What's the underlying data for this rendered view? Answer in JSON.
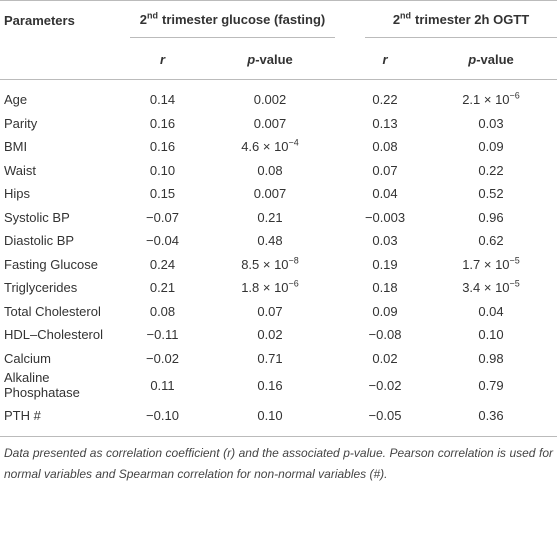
{
  "table": {
    "header": {
      "parameters": "Parameters",
      "groups": [
        {
          "ordinal": "2",
          "suffix": "nd",
          "text": "trimester glucose (fasting)"
        },
        {
          "ordinal": "2",
          "suffix": "nd",
          "text": "trimester 2h OGTT"
        }
      ],
      "subheaders": [
        {
          "r": "r",
          "p": "p",
          "rest": "-value"
        },
        {
          "r": "r",
          "p": "p",
          "rest": "-value"
        }
      ]
    },
    "rows": [
      [
        "Age",
        "0.14",
        "0.002",
        "0.22",
        {
          "base": "2.1 × 10",
          "exp": "−6"
        }
      ],
      [
        "Parity",
        "0.16",
        "0.007",
        "0.13",
        "0.03"
      ],
      [
        "BMI",
        "0.16",
        {
          "base": "4.6 × 10",
          "exp": "−4"
        },
        "0.08",
        "0.09"
      ],
      [
        "Waist",
        "0.10",
        "0.08",
        "0.07",
        "0.22"
      ],
      [
        "Hips",
        "0.15",
        "0.007",
        "0.04",
        "0.52"
      ],
      [
        "Systolic BP",
        "−0.07",
        "0.21",
        "−0.003",
        "0.96"
      ],
      [
        "Diastolic BP",
        "−0.04",
        "0.48",
        "0.03",
        "0.62"
      ],
      [
        "Fasting Glucose",
        "0.24",
        {
          "base": "8.5 × 10",
          "exp": "−8"
        },
        "0.19",
        {
          "base": "1.7 × 10",
          "exp": "−5"
        }
      ],
      [
        "Triglycerides",
        "0.21",
        {
          "base": "1.8 × 10",
          "exp": "−6"
        },
        "0.18",
        {
          "base": "3.4 × 10",
          "exp": "−5"
        }
      ],
      [
        "Total Cholesterol",
        "0.08",
        "0.07",
        "0.09",
        "0.04"
      ],
      [
        "HDL–Cholesterol",
        "−0.11",
        "0.02",
        "−0.08",
        "0.10"
      ],
      [
        "Calcium",
        "−0.02",
        "0.71",
        "0.02",
        "0.98"
      ],
      [
        "Alkaline\nPhosphatase",
        "0.11",
        "0.16",
        "−0.02",
        "0.79"
      ],
      [
        "PTH #",
        "−0.10",
        "0.10",
        "−0.05",
        "0.36"
      ]
    ],
    "footnote": "Data presented as correlation coefficient (r) and the associated p-value. Pearson correlation is used for normal variables and Spearman correlation for non-normal variables (#)."
  }
}
